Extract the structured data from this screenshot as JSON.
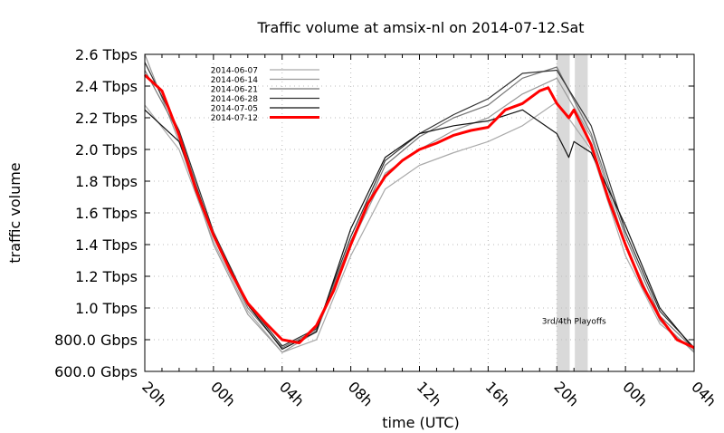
{
  "chart_data": {
    "type": "line",
    "title": "Traffic volume at amsix-nl on 2014-07-12.Sat",
    "xlabel": "time (UTC)",
    "ylabel": "traffic volume",
    "x_unit": "hours since 20h (2014-07-11)",
    "xlim": [
      0,
      32
    ],
    "ylim": [
      0.6,
      2.6
    ],
    "y_unit": "Tbps",
    "x_ticks": [
      {
        "x": 0,
        "label": "20h"
      },
      {
        "x": 4,
        "label": "00h"
      },
      {
        "x": 8,
        "label": "04h"
      },
      {
        "x": 12,
        "label": "08h"
      },
      {
        "x": 16,
        "label": "12h"
      },
      {
        "x": 20,
        "label": "16h"
      },
      {
        "x": 24,
        "label": "20h"
      },
      {
        "x": 28,
        "label": "00h"
      },
      {
        "x": 32,
        "label": "04h"
      }
    ],
    "y_ticks": [
      {
        "y": 0.6,
        "label": "600.0 Gbps"
      },
      {
        "y": 0.8,
        "label": "800.0 Gbps"
      },
      {
        "y": 1.0,
        "label": "1.0 Tbps"
      },
      {
        "y": 1.2,
        "label": "1.2 Tbps"
      },
      {
        "y": 1.4,
        "label": "1.4 Tbps"
      },
      {
        "y": 1.6,
        "label": "1.6 Tbps"
      },
      {
        "y": 1.8,
        "label": "1.8 Tbps"
      },
      {
        "y": 2.0,
        "label": "2.0 Tbps"
      },
      {
        "y": 2.2,
        "label": "2.2 Tbps"
      },
      {
        "y": 2.4,
        "label": "2.4 Tbps"
      },
      {
        "y": 2.6,
        "label": "2.6 Tbps"
      }
    ],
    "grid": true,
    "legend_position": "top-left",
    "shaded_regions": [
      [
        24.0,
        24.75
      ],
      [
        25.05,
        25.8
      ]
    ],
    "annotation": {
      "text": "3rd/4th Playoffs",
      "x": 25,
      "y": 0.9
    },
    "series": [
      {
        "name": "2014-06-07",
        "color": "#aaaaaa",
        "x": [
          0,
          2,
          4,
          6,
          8,
          10,
          12,
          14,
          16,
          18,
          20,
          22,
          24,
          26,
          28,
          30,
          32
        ],
        "values": [
          2.28,
          2.0,
          1.42,
          0.98,
          0.72,
          0.8,
          1.33,
          1.75,
          1.9,
          1.98,
          2.05,
          2.15,
          2.3,
          2.0,
          1.33,
          0.9,
          0.73
        ]
      },
      {
        "name": "2014-06-14",
        "color": "#999999",
        "x": [
          0,
          2,
          4,
          6,
          8,
          10,
          12,
          14,
          16,
          18,
          20,
          22,
          24,
          26,
          28,
          30,
          32
        ],
        "values": [
          2.6,
          2.05,
          1.4,
          0.96,
          0.72,
          0.85,
          1.4,
          1.85,
          2.0,
          2.12,
          2.2,
          2.35,
          2.45,
          2.08,
          1.4,
          0.92,
          0.72
        ]
      },
      {
        "name": "2014-06-21",
        "color": "#777777",
        "x": [
          0,
          2,
          4,
          6,
          8,
          10,
          12,
          14,
          16,
          18,
          20,
          22,
          24,
          26,
          28,
          30,
          32
        ],
        "values": [
          2.5,
          2.1,
          1.45,
          1.0,
          0.75,
          0.86,
          1.42,
          1.9,
          2.08,
          2.2,
          2.28,
          2.45,
          2.52,
          2.1,
          1.45,
          0.95,
          0.74
        ]
      },
      {
        "name": "2014-06-28",
        "color": "#333333",
        "x": [
          0,
          2,
          4,
          6,
          8,
          10,
          12,
          14,
          16,
          18,
          20,
          22,
          24,
          26,
          28,
          30,
          32
        ],
        "values": [
          2.55,
          2.12,
          1.48,
          1.03,
          0.76,
          0.87,
          1.45,
          1.93,
          2.1,
          2.22,
          2.32,
          2.48,
          2.5,
          2.15,
          1.48,
          0.98,
          0.75
        ]
      },
      {
        "name": "2014-07-05",
        "color": "#111111",
        "x": [
          0,
          2,
          4,
          6,
          8,
          10,
          12,
          14,
          16,
          18,
          20,
          22,
          24,
          24.7,
          25,
          26,
          28,
          30,
          32
        ],
        "values": [
          2.25,
          2.05,
          1.47,
          1.02,
          0.74,
          0.85,
          1.5,
          1.95,
          2.1,
          2.15,
          2.18,
          2.25,
          2.1,
          1.95,
          2.05,
          1.98,
          1.52,
          1.0,
          0.74
        ]
      },
      {
        "name": "2014-07-12",
        "color": "#ff0000",
        "x": [
          0,
          1,
          2,
          3,
          4,
          5,
          6,
          7,
          8,
          9,
          10,
          11,
          12,
          13,
          14,
          15,
          16,
          17,
          18,
          19,
          20,
          21,
          22,
          23,
          23.5,
          24,
          24.7,
          25,
          26,
          27,
          28,
          29,
          30,
          31,
          32
        ],
        "values": [
          2.47,
          2.37,
          2.09,
          1.74,
          1.46,
          1.23,
          1.03,
          0.91,
          0.8,
          0.78,
          0.89,
          1.11,
          1.4,
          1.66,
          1.83,
          1.93,
          2.0,
          2.04,
          2.09,
          2.12,
          2.14,
          2.25,
          2.29,
          2.37,
          2.39,
          2.29,
          2.2,
          2.25,
          2.03,
          1.69,
          1.4,
          1.14,
          0.94,
          0.8,
          0.75
        ]
      }
    ]
  }
}
